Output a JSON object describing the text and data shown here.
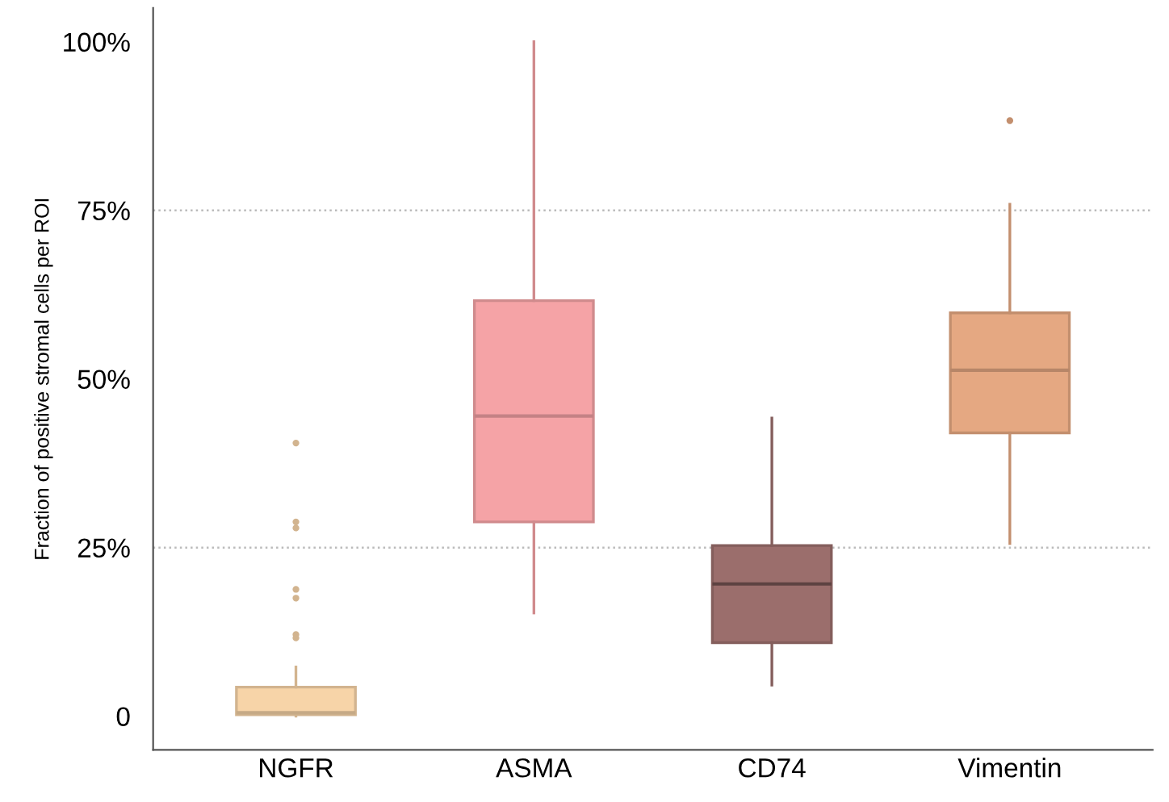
{
  "chart_data": {
    "type": "box",
    "ylabel": "Fraction of positive stromal cells per ROI",
    "categories": [
      "NGFR",
      "ASMA",
      "CD74",
      "Vimentin"
    ],
    "colors": [
      "#f7d4a8",
      "#f5a3a6",
      "#9b6e6c",
      "#e5a882"
    ],
    "boxes": [
      {
        "low": 0,
        "q1": 0.2,
        "median": 0.5,
        "q3": 4.3,
        "high": 7.3,
        "outliers": [
          40.5,
          28.8,
          27.9,
          18.8,
          17.5,
          12.1,
          11.6
        ]
      },
      {
        "low": 15.3,
        "q1": 28.8,
        "median": 44.5,
        "q3": 61.6,
        "high": 100
      },
      {
        "low": 4.6,
        "q1": 10.9,
        "median": 19.6,
        "q3": 25.3,
        "high": 44.2
      },
      {
        "low": 25.6,
        "q1": 42.0,
        "median": 51.3,
        "q3": 59.8,
        "high": 75.9,
        "outliers": [
          88.3
        ]
      }
    ],
    "ylim": [
      -5,
      105
    ],
    "yticks": [
      0,
      {
        "value": 25,
        "label": "25%"
      },
      {
        "value": 50,
        "label": "50%"
      },
      {
        "value": 75,
        "label": "75%"
      },
      {
        "value": 100,
        "label": "100%"
      }
    ],
    "ref_lines": [
      {
        "axis": "y",
        "value": 25,
        "color": "#bbbbbb",
        "line_style": "dotted"
      },
      {
        "axis": "y",
        "value": 75,
        "color": "#bbbbbb",
        "line_style": "dotted"
      }
    ],
    "grid": false
  }
}
